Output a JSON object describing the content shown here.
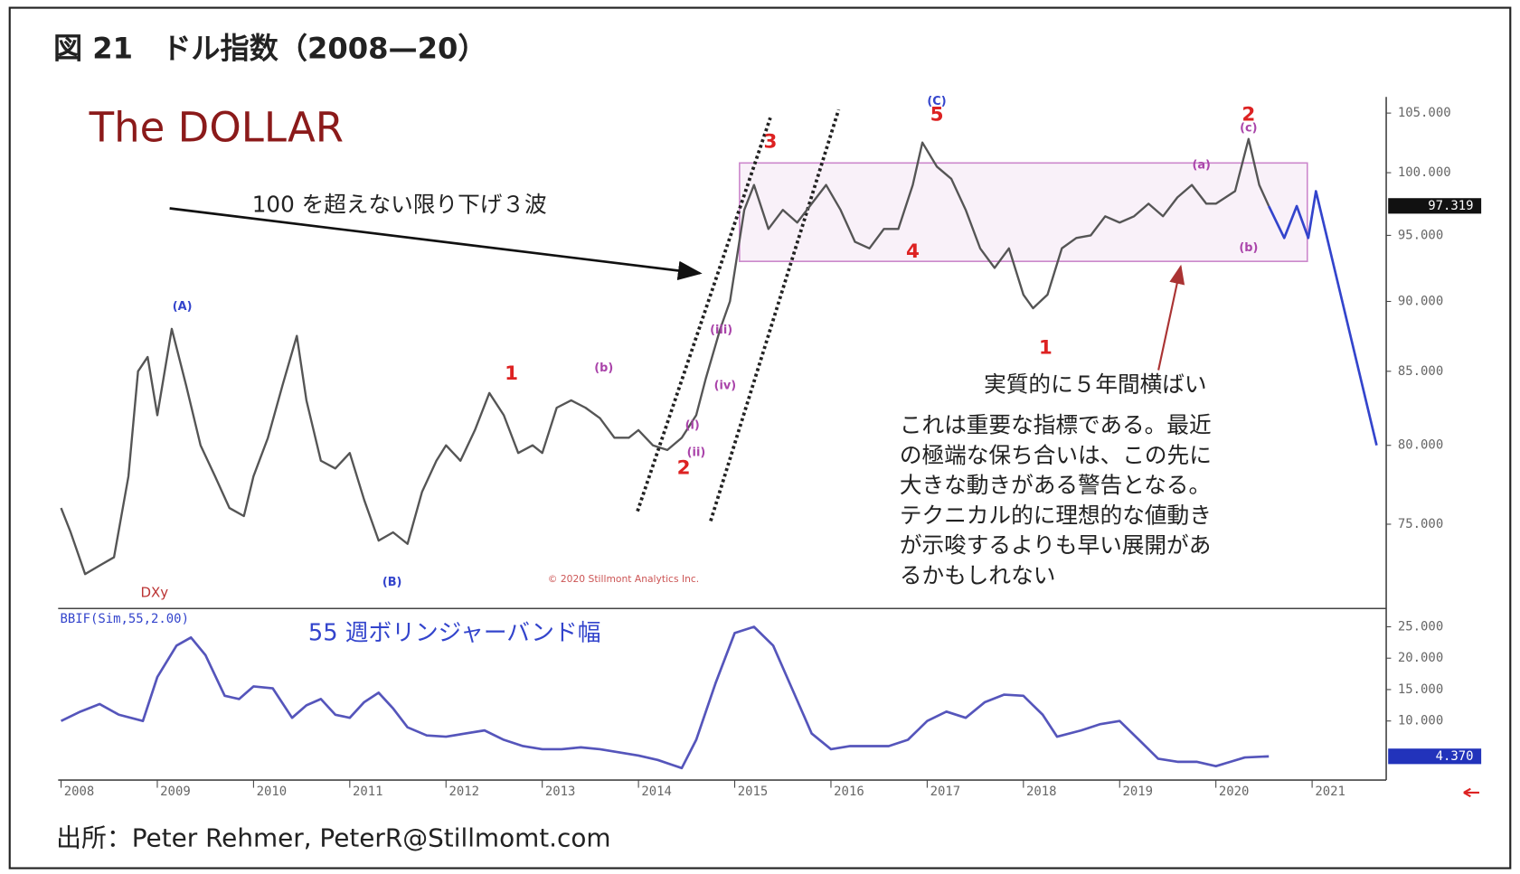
{
  "title": "図 21　ドル指数（2008—20）",
  "source": "出所：Peter Rehmer, PeterR@Stillmomt.com",
  "notes": {
    "wave_note": "100 を超えない限り下げ３波",
    "range_note": "実質的に５年間横ばい",
    "comment": [
      "これは重要な指標である。最近",
      "の極端な保ち合いは、この先に",
      "大きな動きがある警告となる。",
      "テクニカル的に理想的な値動き",
      "が示唆するよりも早い展開があ",
      "るかもしれない"
    ]
  },
  "chart_data": [
    {
      "type": "line",
      "title": "The DOLLAR",
      "label": "DXy",
      "copyright": "© 2020 Stillmont Analytics Inc.",
      "log_scale": true,
      "color": "#555555",
      "x": [
        2008.0,
        2008.1,
        2008.25,
        2008.4,
        2008.55,
        2008.7,
        2008.8,
        2008.9,
        2009.0,
        2009.15,
        2009.3,
        2009.45,
        2009.6,
        2009.75,
        2009.9,
        2010.0,
        2010.15,
        2010.3,
        2010.45,
        2010.55,
        2010.7,
        2010.85,
        2011.0,
        2011.15,
        2011.3,
        2011.45,
        2011.6,
        2011.75,
        2011.9,
        2012.0,
        2012.15,
        2012.3,
        2012.45,
        2012.6,
        2012.75,
        2012.9,
        2013.0,
        2013.15,
        2013.3,
        2013.45,
        2013.6,
        2013.75,
        2013.9,
        2014.0,
        2014.15,
        2014.3,
        2014.45,
        2014.6,
        2014.7,
        2014.85,
        2014.95,
        2015.1,
        2015.2,
        2015.35,
        2015.5,
        2015.65,
        2015.8,
        2015.95,
        2016.1,
        2016.25,
        2016.4,
        2016.55,
        2016.7,
        2016.85,
        2016.95,
        2017.1,
        2017.25,
        2017.4,
        2017.55,
        2017.7,
        2017.85,
        2018.0,
        2018.1,
        2018.25,
        2018.4,
        2018.55,
        2018.7,
        2018.85,
        2019.0,
        2019.15,
        2019.3,
        2019.45,
        2019.6,
        2019.75,
        2019.9,
        2020.0,
        2020.2,
        2020.34,
        2020.45,
        2020.55
      ],
      "values": [
        76,
        74.5,
        72,
        72.5,
        73,
        78,
        85,
        86,
        82,
        88,
        84,
        80,
        78,
        76,
        75.5,
        78,
        80.5,
        84,
        87.5,
        83,
        79,
        78.5,
        79.5,
        76.5,
        74,
        74.5,
        73.8,
        77,
        79,
        80,
        79,
        81,
        83.5,
        82,
        79.5,
        80,
        79.5,
        82.5,
        83,
        82.5,
        81.8,
        80.5,
        80.5,
        81,
        80,
        79.7,
        80.5,
        82,
        84.5,
        88,
        90,
        97,
        99,
        95.5,
        97,
        96,
        97.5,
        99,
        97,
        94.5,
        94,
        95.5,
        95.5,
        99,
        102.5,
        100.5,
        99.5,
        97,
        94,
        92.5,
        94,
        90.5,
        89.5,
        90.5,
        94,
        94.8,
        95,
        96.5,
        96,
        96.5,
        97.5,
        96.5,
        98,
        99,
        97.5,
        97.5,
        98.5,
        102.8,
        99,
        97.3
      ],
      "last_value": {
        "value": 97.319,
        "label": "97.319"
      },
      "projection": {
        "color": "#3344cc",
        "x": [
          2020.55,
          2020.71,
          2020.84,
          2020.96,
          2021.04,
          2021.67
        ],
        "values": [
          97.3,
          94.8,
          97.3,
          94.8,
          98.5,
          80
        ]
      },
      "range_box": {
        "color": "#cc88cc",
        "x": [
          2015.05,
          2020.95
        ],
        "y": [
          93,
          100.8
        ]
      },
      "channel_lines": [
        {
          "x": [
            2013.99,
            2015.37
          ],
          "y": [
            75.8,
            104.6
          ]
        },
        {
          "x": [
            2014.75,
            2016.08
          ],
          "y": [
            75.2,
            105.3
          ]
        }
      ],
      "annotations": [
        {
          "text": "(A)",
          "x": 2009.26,
          "y": 89.6,
          "color": "#3344cc"
        },
        {
          "text": "(B)",
          "x": 2011.44,
          "y": 71.5,
          "color": "#3344cc"
        },
        {
          "text": "(C)",
          "x": 2017.1,
          "y": 106,
          "color": "#3344cc"
        },
        {
          "text": "1",
          "x": 2012.68,
          "y": 84.8,
          "color": "#dd2222"
        },
        {
          "text": "(b)",
          "x": 2013.64,
          "y": 85.2,
          "color": "#aa44aa"
        },
        {
          "text": "2",
          "x": 2014.47,
          "y": 78.5,
          "color": "#dd2222"
        },
        {
          "text": "(i)",
          "x": 2014.56,
          "y": 81.3,
          "color": "#aa44aa"
        },
        {
          "text": "(ii)",
          "x": 2014.6,
          "y": 79.5,
          "color": "#aa44aa"
        },
        {
          "text": "(iii)",
          "x": 2014.86,
          "y": 87.9,
          "color": "#aa44aa"
        },
        {
          "text": "(iv)",
          "x": 2014.9,
          "y": 84.0,
          "color": "#aa44aa"
        },
        {
          "text": "3",
          "x": 2015.37,
          "y": 102.5,
          "color": "#dd2222"
        },
        {
          "text": "5",
          "x": 2017.1,
          "y": 104.8,
          "color": "#dd2222"
        },
        {
          "text": "4",
          "x": 2016.85,
          "y": 93.7,
          "color": "#dd2222"
        },
        {
          "text": "1",
          "x": 2018.23,
          "y": 86.6,
          "color": "#dd2222"
        },
        {
          "text": "(a)",
          "x": 2019.85,
          "y": 100.6,
          "color": "#aa44aa"
        },
        {
          "text": "2",
          "x": 2020.34,
          "y": 104.8,
          "color": "#dd2222"
        },
        {
          "text": "(c)",
          "x": 2020.34,
          "y": 103.7,
          "color": "#aa44aa"
        },
        {
          "text": "(b)",
          "x": 2020.34,
          "y": 94,
          "color": "#aa44aa"
        }
      ],
      "xlim": [
        2008,
        2021.77
      ],
      "ylim": [
        70,
        106.4
      ],
      "yticks": [
        {
          "value": 105,
          "label": "105.000"
        },
        {
          "value": 100,
          "label": "100.000"
        },
        {
          "value": 95,
          "label": "95.000"
        },
        {
          "value": 90,
          "label": "90.000"
        },
        {
          "value": 85,
          "label": "85.000"
        },
        {
          "value": 80,
          "label": "80.000"
        },
        {
          "value": 75,
          "label": "75.000"
        }
      ]
    },
    {
      "type": "line",
      "title": "55 週ボリンジャーバンド幅",
      "label": "BBIF(Sim,55,2.00)",
      "color": "#5555bb",
      "x": [
        2008.0,
        2008.2,
        2008.4,
        2008.6,
        2008.85,
        2009.0,
        2009.2,
        2009.35,
        2009.5,
        2009.7,
        2009.85,
        2010.0,
        2010.2,
        2010.4,
        2010.55,
        2010.7,
        2010.85,
        2011.0,
        2011.15,
        2011.3,
        2011.45,
        2011.6,
        2011.8,
        2012.0,
        2012.2,
        2012.4,
        2012.6,
        2012.8,
        2013.0,
        2013.2,
        2013.4,
        2013.6,
        2013.8,
        2014.0,
        2014.2,
        2014.35,
        2014.45,
        2014.6,
        2014.8,
        2015.0,
        2015.2,
        2015.4,
        2015.6,
        2015.8,
        2016.0,
        2016.2,
        2016.4,
        2016.6,
        2016.8,
        2017.0,
        2017.2,
        2017.4,
        2017.6,
        2017.8,
        2018.0,
        2018.2,
        2018.35,
        2018.6,
        2018.8,
        2019.0,
        2019.2,
        2019.4,
        2019.6,
        2019.8,
        2020.0,
        2020.15,
        2020.3,
        2020.55
      ],
      "values": [
        10,
        11.5,
        12.7,
        11,
        10,
        17,
        22,
        23.3,
        20.5,
        14,
        13.5,
        15.5,
        15.2,
        10.5,
        12.5,
        13.5,
        11,
        10.5,
        13,
        14.5,
        12,
        9,
        7.7,
        7.5,
        8,
        8.5,
        7,
        6,
        5.5,
        5.5,
        5.8,
        5.5,
        5,
        4.5,
        3.8,
        3,
        2.5,
        7,
        16,
        24,
        25,
        22,
        15,
        8,
        5.5,
        6,
        6,
        6,
        7,
        10,
        11.5,
        10.5,
        13,
        14.2,
        14,
        11,
        7.5,
        8.5,
        9.5,
        10,
        7,
        4,
        3.5,
        3.5,
        2.8,
        3.5,
        4.2,
        4.37
      ],
      "last_value": {
        "value": 4.37,
        "label": "4.370"
      },
      "xlim": [
        2008,
        2021.77
      ],
      "ylim": [
        0.6,
        27.6
      ],
      "yticks": [
        {
          "value": 25,
          "label": "25.000"
        },
        {
          "value": 20,
          "label": "20.000"
        },
        {
          "value": 15,
          "label": "15.000"
        },
        {
          "value": 10,
          "label": "10.000"
        }
      ],
      "xticks": [
        2008,
        2009,
        2010,
        2011,
        2012,
        2013,
        2014,
        2015,
        2016,
        2017,
        2018,
        2019,
        2020,
        2021
      ]
    }
  ]
}
